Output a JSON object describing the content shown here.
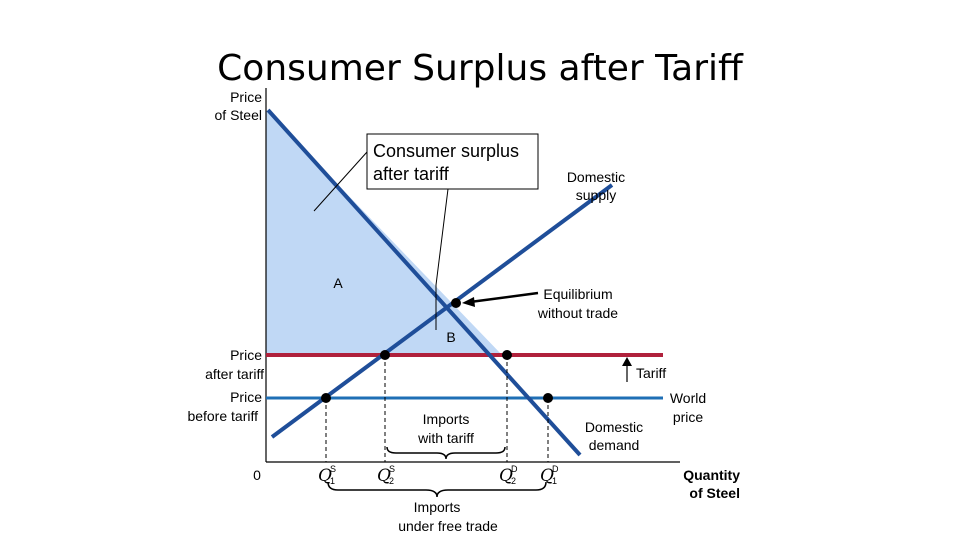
{
  "chart_data": {
    "type": "line",
    "title": "Consumer Surplus after Tariff",
    "ylabel": [
      "Price",
      "of Steel"
    ],
    "xlabel": [
      "Quantity",
      "of Steel"
    ],
    "origin_label": "0",
    "series": [
      {
        "name": "Domestic demand",
        "label": [
          "Domestic",
          "demand"
        ],
        "color": "#1f4e99"
      },
      {
        "name": "Domestic supply",
        "label": [
          "Domestic",
          "supply"
        ],
        "color": "#1f4e99"
      }
    ],
    "price_levels": [
      {
        "label": [
          "Price",
          "after tariff"
        ],
        "color": "#b0213c"
      },
      {
        "label": [
          "Price",
          "before tariff"
        ],
        "color": "#1f6fb5"
      }
    ],
    "world_price_label": [
      "World",
      "price"
    ],
    "tariff_label": "Tariff",
    "equilibrium_label": [
      "Equilibrium",
      "without trade"
    ],
    "callout_label": [
      "Consumer surplus",
      "after tariff"
    ],
    "area_labels": [
      "A",
      "B"
    ],
    "area_fill": "#c0d8f5",
    "quantities": [
      {
        "letter": "Q",
        "sup": "S",
        "sub": "1"
      },
      {
        "letter": "Q",
        "sup": "S",
        "sub": "2"
      },
      {
        "letter": "Q",
        "sup": "D",
        "sub": "2"
      },
      {
        "letter": "Q",
        "sup": "D",
        "sub": "1"
      }
    ],
    "imports_with_tariff_label": [
      "Imports",
      "with tariff"
    ],
    "imports_free_trade_label": [
      "Imports",
      "under free trade"
    ]
  }
}
